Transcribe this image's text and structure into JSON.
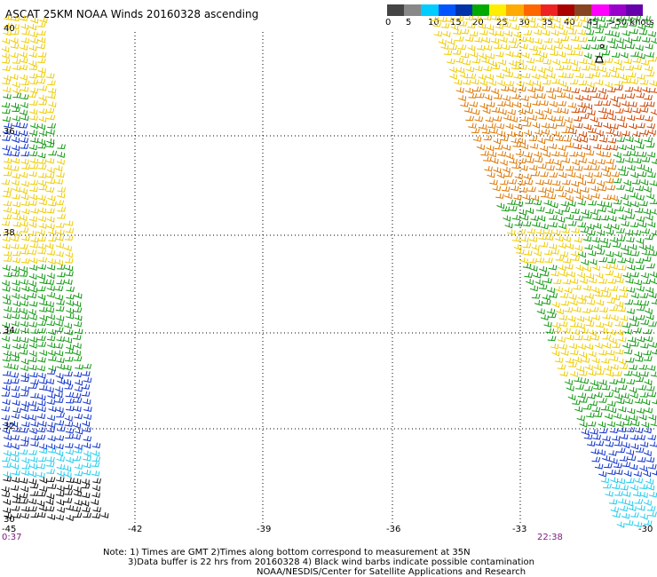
{
  "title": "ASCAT 25KM NOAA Winds 20160328 ascending",
  "colorbar": {
    "colors": [
      "#444444",
      "#888888",
      "#00ccff",
      "#0055ff",
      "#0033aa",
      "#00aa00",
      "#ffee00",
      "#ffaa00",
      "#ff6600",
      "#ee2222",
      "#aa0000",
      "#884422",
      "#ff00ff",
      "#9900cc",
      "#6600aa"
    ],
    "labels": [
      "0",
      "5",
      "10",
      "15",
      "20",
      "25",
      "30",
      "35",
      "40",
      "45",
      ">50 knots"
    ]
  },
  "lat_labels": [
    "40",
    "36",
    "38",
    "34",
    "32",
    "30"
  ],
  "lon_labels": [
    "-45",
    "-42",
    "-39",
    "-36",
    "-33",
    "-30"
  ],
  "times": {
    "left": "0:37",
    "right": "22:38"
  },
  "notes": [
    "Note: 1) Times are GMT 2)Times along bottom correspond to measurement at 35N",
    "3)Data buffer is 22 hrs from 20160328 4) Black wind barbs indicate possible contamination",
    "NOAA/NESDIS/Center for Satellite Applications and Research"
  ],
  "wind_colors": {
    "black": "#111111",
    "cyan": "#22ccee",
    "blue": "#1133cc",
    "green": "#119911",
    "darkgreen": "#006600",
    "yellow": "#eecc00",
    "orange": "#dd7700",
    "darkorange": "#cc4400",
    "red": "#ee2222",
    "magenta": "#cc00aa"
  }
}
